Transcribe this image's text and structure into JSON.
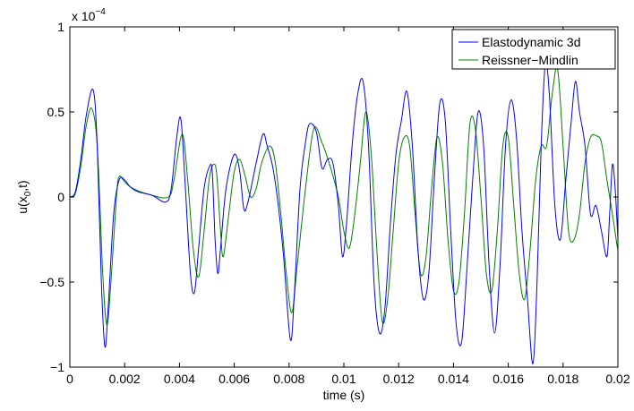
{
  "chart_data": {
    "type": "line",
    "title": "",
    "xlabel": "time (s)",
    "ylabel_main": "u(x",
    "ylabel_sub": "0",
    "ylabel_tail": ",t)",
    "exponent": {
      "prefix": "x 10",
      "power": "−4"
    },
    "xlim": [
      0,
      0.02
    ],
    "ylim": [
      -1,
      1
    ],
    "x_ticks": [
      0,
      0.002,
      0.004,
      0.006,
      0.008,
      0.01,
      0.012,
      0.014,
      0.016,
      0.018,
      0.02
    ],
    "x_tick_labels": [
      "0",
      "0.002",
      "0.004",
      "0.006",
      "0.008",
      "0.01",
      "0.012",
      "0.014",
      "0.016",
      "0.018",
      "0.02"
    ],
    "y_ticks": [
      -1,
      -0.5,
      0,
      0.5,
      1
    ],
    "y_tick_labels": [
      "−1",
      "−0.5",
      "0",
      "0.5",
      "1"
    ],
    "grid": false,
    "legend_position": "top-right",
    "series": [
      {
        "name": "Elastodynamic 3d",
        "color": "#0000ff",
        "points": [
          [
            0,
            0
          ],
          [
            0.0002,
            0.03
          ],
          [
            0.0004,
            0.22
          ],
          [
            0.0006,
            0.48
          ],
          [
            0.00085,
            0.63
          ],
          [
            0.001,
            0.3
          ],
          [
            0.00115,
            -0.5
          ],
          [
            0.00128,
            -0.88
          ],
          [
            0.0014,
            -0.65
          ],
          [
            0.0016,
            -0.1
          ],
          [
            0.0018,
            0.1
          ],
          [
            0.002,
            0.1
          ],
          [
            0.0022,
            0.06
          ],
          [
            0.0025,
            0.03
          ],
          [
            0.003,
            0.01
          ],
          [
            0.0035,
            -0.03
          ],
          [
            0.0037,
            0.05
          ],
          [
            0.0039,
            0.35
          ],
          [
            0.00405,
            0.46
          ],
          [
            0.0042,
            0.1
          ],
          [
            0.0044,
            -0.45
          ],
          [
            0.00455,
            -0.56
          ],
          [
            0.0047,
            -0.3
          ],
          [
            0.0049,
            0.05
          ],
          [
            0.0051,
            0.18
          ],
          [
            0.0052,
            0.14
          ],
          [
            0.0053,
            -0.25
          ],
          [
            0.0054,
            -0.45
          ],
          [
            0.0055,
            -0.3
          ],
          [
            0.0057,
            0.05
          ],
          [
            0.006,
            0.25
          ],
          [
            0.0062,
            0.15
          ],
          [
            0.00635,
            -0.07
          ],
          [
            0.0065,
            -0.03
          ],
          [
            0.0068,
            0.2
          ],
          [
            0.00705,
            0.37
          ],
          [
            0.0072,
            0.3
          ],
          [
            0.0074,
            0.18
          ],
          [
            0.0076,
            -0.04
          ],
          [
            0.0078,
            -0.35
          ],
          [
            0.00805,
            -0.84
          ],
          [
            0.0082,
            -0.55
          ],
          [
            0.0084,
            0.05
          ],
          [
            0.0086,
            0.32
          ],
          [
            0.00875,
            0.43
          ],
          [
            0.009,
            0.38
          ],
          [
            0.0092,
            0.17
          ],
          [
            0.0094,
            0.22
          ],
          [
            0.0096,
            0.2
          ],
          [
            0.0098,
            -0.05
          ],
          [
            0.00995,
            -0.35
          ],
          [
            0.0101,
            -0.15
          ],
          [
            0.0103,
            0.3
          ],
          [
            0.0105,
            0.6
          ],
          [
            0.0107,
            0.68
          ],
          [
            0.0109,
            0.3
          ],
          [
            0.0111,
            -0.5
          ],
          [
            0.0113,
            -0.8
          ],
          [
            0.0115,
            -0.65
          ],
          [
            0.0117,
            -0.15
          ],
          [
            0.0119,
            0.25
          ],
          [
            0.0121,
            0.45
          ],
          [
            0.0123,
            0.62
          ],
          [
            0.0125,
            0.3
          ],
          [
            0.0127,
            -0.3
          ],
          [
            0.0129,
            -0.6
          ],
          [
            0.0131,
            -0.45
          ],
          [
            0.0133,
            0.1
          ],
          [
            0.0135,
            0.55
          ],
          [
            0.0137,
            0.45
          ],
          [
            0.0139,
            -0.2
          ],
          [
            0.0141,
            -0.75
          ],
          [
            0.0143,
            -0.85
          ],
          [
            0.0145,
            -0.4
          ],
          [
            0.0147,
            0.1
          ],
          [
            0.0149,
            0.5
          ],
          [
            0.0151,
            0.3
          ],
          [
            0.0153,
            -0.4
          ],
          [
            0.0155,
            -0.8
          ],
          [
            0.0157,
            -0.4
          ],
          [
            0.0159,
            0.3
          ],
          [
            0.0161,
            0.57
          ],
          [
            0.0163,
            0.35
          ],
          [
            0.0165,
            -0.2
          ],
          [
            0.0167,
            -0.6
          ],
          [
            0.0169,
            -0.98
          ],
          [
            0.01705,
            -0.5
          ],
          [
            0.0172,
            0.3
          ],
          [
            0.01735,
            0.78
          ],
          [
            0.0175,
            0.6
          ],
          [
            0.0177,
            -0.05
          ],
          [
            0.0179,
            -0.25
          ],
          [
            0.0181,
            0.1
          ],
          [
            0.0183,
            0.45
          ],
          [
            0.01845,
            0.68
          ],
          [
            0.0186,
            0.5
          ],
          [
            0.0188,
            0.3
          ],
          [
            0.019,
            -0.1
          ],
          [
            0.0192,
            -0.05
          ],
          [
            0.0194,
            -0.2
          ],
          [
            0.0196,
            -0.35
          ],
          [
            0.0197,
            -0.1
          ],
          [
            0.0198,
            0.19
          ],
          [
            0.0199,
            0.05
          ],
          [
            0.02,
            -0.25
          ]
        ]
      },
      {
        "name": "Reissner−Mindlin",
        "color": "#008000",
        "points": [
          [
            0,
            0
          ],
          [
            0.0002,
            0.02
          ],
          [
            0.0004,
            0.18
          ],
          [
            0.0006,
            0.42
          ],
          [
            0.0008,
            0.52
          ],
          [
            0.001,
            0.3
          ],
          [
            0.0012,
            -0.45
          ],
          [
            0.00135,
            -0.75
          ],
          [
            0.0015,
            -0.5
          ],
          [
            0.0017,
            0.0
          ],
          [
            0.0018,
            0.12
          ],
          [
            0.002,
            0.09
          ],
          [
            0.0023,
            0.05
          ],
          [
            0.003,
            0.01
          ],
          [
            0.0036,
            0.0
          ],
          [
            0.0038,
            0.1
          ],
          [
            0.0041,
            0.37
          ],
          [
            0.0043,
            0.1
          ],
          [
            0.0045,
            -0.3
          ],
          [
            0.0047,
            -0.47
          ],
          [
            0.0049,
            -0.2
          ],
          [
            0.0051,
            0.12
          ],
          [
            0.0053,
            0.19
          ],
          [
            0.0054,
            0.05
          ],
          [
            0.0055,
            -0.2
          ],
          [
            0.0056,
            -0.35
          ],
          [
            0.0058,
            -0.1
          ],
          [
            0.006,
            0.15
          ],
          [
            0.0062,
            0.22
          ],
          [
            0.0064,
            0.12
          ],
          [
            0.0066,
            0.0
          ],
          [
            0.0068,
            0.05
          ],
          [
            0.007,
            0.2
          ],
          [
            0.0073,
            0.3
          ],
          [
            0.0075,
            0.2
          ],
          [
            0.0077,
            -0.1
          ],
          [
            0.0079,
            -0.45
          ],
          [
            0.0081,
            -0.68
          ],
          [
            0.0083,
            -0.4
          ],
          [
            0.0086,
            0.05
          ],
          [
            0.0089,
            0.4
          ],
          [
            0.0092,
            0.32
          ],
          [
            0.0095,
            0.18
          ],
          [
            0.0098,
            0.0
          ],
          [
            0.01,
            -0.2
          ],
          [
            0.0102,
            -0.3
          ],
          [
            0.0104,
            -0.1
          ],
          [
            0.0106,
            0.2
          ],
          [
            0.0108,
            0.5
          ],
          [
            0.011,
            0.25
          ],
          [
            0.0112,
            -0.3
          ],
          [
            0.0114,
            -0.73
          ],
          [
            0.0116,
            -0.6
          ],
          [
            0.0118,
            -0.2
          ],
          [
            0.012,
            0.2
          ],
          [
            0.0122,
            0.35
          ],
          [
            0.0124,
            0.3
          ],
          [
            0.0126,
            -0.1
          ],
          [
            0.0128,
            -0.45
          ],
          [
            0.013,
            -0.35
          ],
          [
            0.0132,
            0.05
          ],
          [
            0.0134,
            0.35
          ],
          [
            0.0136,
            0.2
          ],
          [
            0.0138,
            -0.25
          ],
          [
            0.014,
            -0.55
          ],
          [
            0.0142,
            -0.5
          ],
          [
            0.0144,
            -0.1
          ],
          [
            0.0146,
            0.43
          ],
          [
            0.0148,
            0.4
          ],
          [
            0.015,
            0.0
          ],
          [
            0.0152,
            -0.45
          ],
          [
            0.0154,
            -0.55
          ],
          [
            0.0156,
            -0.2
          ],
          [
            0.0158,
            0.3
          ],
          [
            0.016,
            0.35
          ],
          [
            0.0162,
            -0.05
          ],
          [
            0.0164,
            -0.45
          ],
          [
            0.0166,
            -0.6
          ],
          [
            0.0168,
            -0.3
          ],
          [
            0.017,
            0.1
          ],
          [
            0.0172,
            0.3
          ],
          [
            0.0174,
            0.3
          ],
          [
            0.0176,
            0.6
          ],
          [
            0.0178,
            0.75
          ],
          [
            0.018,
            0.3
          ],
          [
            0.0182,
            -0.2
          ],
          [
            0.0184,
            -0.25
          ],
          [
            0.0186,
            -0.1
          ],
          [
            0.0188,
            0.2
          ],
          [
            0.019,
            0.35
          ],
          [
            0.0192,
            0.36
          ],
          [
            0.0194,
            0.32
          ],
          [
            0.0196,
            0.1
          ],
          [
            0.0198,
            -0.1
          ],
          [
            0.02,
            -0.32
          ]
        ]
      }
    ]
  }
}
